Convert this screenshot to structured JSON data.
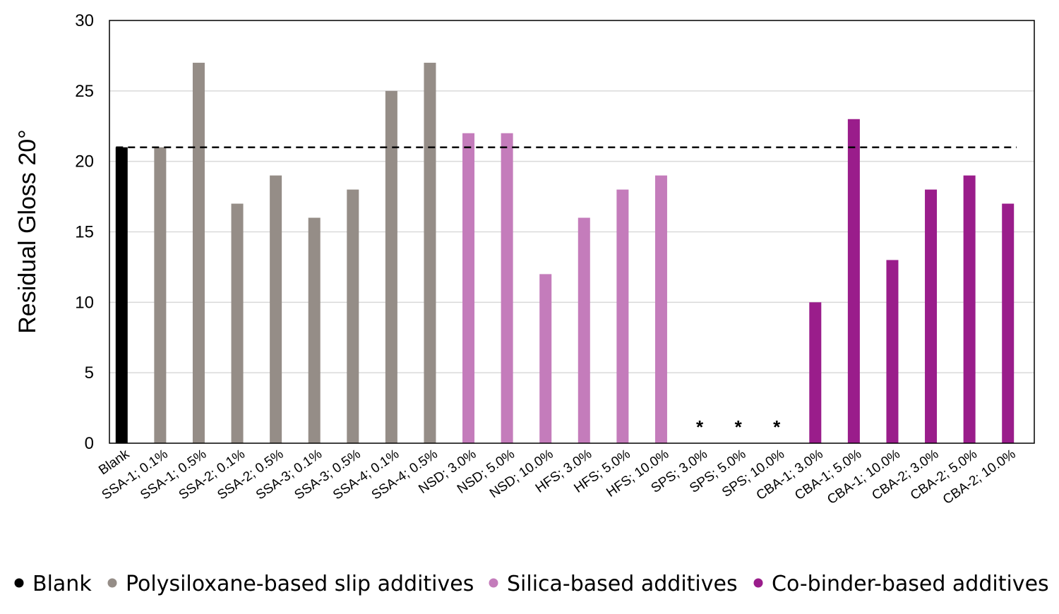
{
  "chart_data": {
    "type": "bar",
    "ylabel": "Residual Gloss 20°",
    "xlabel": "",
    "ylim": [
      0,
      30
    ],
    "yticks": [
      0,
      5,
      10,
      15,
      20,
      25,
      30
    ],
    "grid": true,
    "reference_line": {
      "value": 21,
      "style": "dashed",
      "color": "#000000"
    },
    "categories": [
      "Blank",
      "SSA-1; 0.1%",
      "SSA-1; 0.5%",
      "SSA-2; 0.1%",
      "SSA-2; 0.5%",
      "SSA-3; 0.1%",
      "SSA-3; 0.5%",
      "SSA-4; 0.1%",
      "SSA-4; 0.5%",
      "NSD; 3.0%",
      "NSD; 5.0%",
      "NSD; 10.0%",
      "HFS; 3.0%",
      "HFS; 5.0%",
      "HFS; 10.0%",
      "SPS; 3.0%",
      "SPS; 5.0%",
      "SPS; 10.0%",
      "CBA-1; 3.0%",
      "CBA-1; 5.0%",
      "CBA-1; 10.0%",
      "CBA-2; 3.0%",
      "CBA-2; 5.0%",
      "CBA-2; 10.0%"
    ],
    "values": [
      21,
      21,
      27,
      17,
      19,
      16,
      18,
      25,
      27,
      22,
      22,
      12,
      16,
      18,
      19,
      null,
      null,
      null,
      10,
      23,
      13,
      18,
      19,
      17
    ],
    "groups": [
      0,
      1,
      1,
      1,
      1,
      1,
      1,
      1,
      1,
      2,
      2,
      2,
      2,
      2,
      2,
      2,
      2,
      2,
      3,
      3,
      3,
      3,
      3,
      3
    ],
    "null_marker": "*",
    "series": [
      {
        "name": "Blank",
        "color": "#000000"
      },
      {
        "name": "Polysiloxane-based slip additives",
        "color": "#958d87"
      },
      {
        "name": "Silica-based additives",
        "color": "#c47cbb"
      },
      {
        "name": "Co-binder-based additives",
        "color": "#9a1d8b"
      }
    ],
    "legend_position": "bottom",
    "legend_marker": "●"
  }
}
